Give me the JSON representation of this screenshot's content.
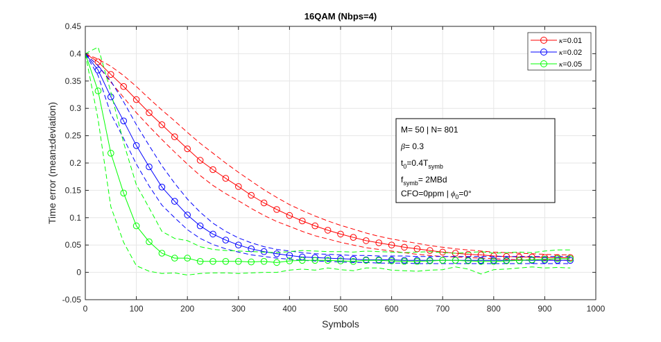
{
  "chart_data": {
    "type": "line",
    "title": "16QAM (Nbps=4)",
    "xlabel": "Symbols",
    "ylabel": "Time error (mean±deviation)",
    "xlim": [
      0,
      1000
    ],
    "ylim": [
      -0.05,
      0.45
    ],
    "xticks": [
      0,
      100,
      200,
      300,
      400,
      500,
      600,
      700,
      800,
      900,
      1000
    ],
    "yticks": [
      -0.05,
      0,
      0.05,
      0.1,
      0.15,
      0.2,
      0.25,
      0.3,
      0.35,
      0.4,
      0.45
    ],
    "ytick_labels": [
      "-0.05",
      "0",
      "0.05",
      "0.1",
      "0.15",
      "0.2",
      "0.25",
      "0.3",
      "0.35",
      "0.4",
      "0.45"
    ],
    "grid": true,
    "legend": {
      "location": "top-right",
      "entries": [
        {
          "prefix": "κ",
          "text": "=0.01"
        },
        {
          "prefix": "κ",
          "text": "=0.02"
        },
        {
          "prefix": "κ",
          "text": "=0.05"
        }
      ]
    },
    "x": [
      0,
      25,
      50,
      75,
      100,
      125,
      150,
      175,
      200,
      225,
      250,
      275,
      300,
      325,
      350,
      375,
      400,
      425,
      450,
      475,
      500,
      525,
      550,
      575,
      600,
      625,
      650,
      675,
      700,
      725,
      750,
      775,
      800,
      825,
      850,
      875,
      900,
      925,
      950
    ],
    "series": [
      {
        "name": "κ=0.01",
        "color": "#ff0000",
        "mean": [
          0.4,
          0.385,
          0.362,
          0.34,
          0.316,
          0.292,
          0.27,
          0.248,
          0.226,
          0.205,
          0.188,
          0.172,
          0.157,
          0.141,
          0.127,
          0.115,
          0.104,
          0.094,
          0.085,
          0.077,
          0.07,
          0.064,
          0.058,
          0.054,
          0.05,
          0.046,
          0.043,
          0.04,
          0.037,
          0.035,
          0.033,
          0.032,
          0.03,
          0.029,
          0.028,
          0.028,
          0.027,
          0.027,
          0.027
        ],
        "upper": [
          0.4,
          0.39,
          0.377,
          0.36,
          0.34,
          0.318,
          0.297,
          0.277,
          0.256,
          0.236,
          0.218,
          0.2,
          0.183,
          0.167,
          0.151,
          0.137,
          0.124,
          0.113,
          0.103,
          0.094,
          0.086,
          0.079,
          0.072,
          0.066,
          0.061,
          0.057,
          0.053,
          0.049,
          0.046,
          0.043,
          0.041,
          0.039,
          0.037,
          0.036,
          0.035,
          0.034,
          0.033,
          0.032,
          0.032
        ],
        "lower": [
          0.4,
          0.378,
          0.348,
          0.32,
          0.292,
          0.267,
          0.243,
          0.22,
          0.198,
          0.177,
          0.159,
          0.144,
          0.131,
          0.117,
          0.104,
          0.093,
          0.084,
          0.075,
          0.067,
          0.061,
          0.055,
          0.05,
          0.045,
          0.042,
          0.039,
          0.036,
          0.033,
          0.031,
          0.029,
          0.028,
          0.027,
          0.026,
          0.025,
          0.024,
          0.023,
          0.023,
          0.023,
          0.022,
          0.022
        ]
      },
      {
        "name": "κ=0.02",
        "color": "#0000ff",
        "mean": [
          0.4,
          0.37,
          0.321,
          0.277,
          0.232,
          0.193,
          0.156,
          0.13,
          0.105,
          0.085,
          0.07,
          0.059,
          0.05,
          0.043,
          0.038,
          0.034,
          0.031,
          0.028,
          0.027,
          0.026,
          0.025,
          0.024,
          0.023,
          0.023,
          0.023,
          0.022,
          0.022,
          0.022,
          0.022,
          0.022,
          0.022,
          0.022,
          0.022,
          0.022,
          0.022,
          0.022,
          0.022,
          0.022,
          0.022
        ],
        "upper": [
          0.4,
          0.378,
          0.35,
          0.312,
          0.27,
          0.232,
          0.195,
          0.163,
          0.134,
          0.11,
          0.09,
          0.075,
          0.063,
          0.054,
          0.047,
          0.042,
          0.039,
          0.036,
          0.034,
          0.033,
          0.032,
          0.031,
          0.031,
          0.03,
          0.03,
          0.03,
          0.029,
          0.029,
          0.029,
          0.029,
          0.029,
          0.029,
          0.029,
          0.029,
          0.029,
          0.029,
          0.029,
          0.029,
          0.029
        ],
        "lower": [
          0.4,
          0.36,
          0.29,
          0.245,
          0.198,
          0.158,
          0.123,
          0.1,
          0.078,
          0.062,
          0.051,
          0.043,
          0.037,
          0.032,
          0.029,
          0.026,
          0.024,
          0.022,
          0.021,
          0.02,
          0.019,
          0.018,
          0.018,
          0.017,
          0.017,
          0.017,
          0.016,
          0.016,
          0.016,
          0.016,
          0.016,
          0.016,
          0.016,
          0.016,
          0.016,
          0.016,
          0.016,
          0.016,
          0.016
        ]
      },
      {
        "name": "κ=0.05",
        "color": "#00ff00",
        "mean": [
          0.4,
          0.332,
          0.218,
          0.145,
          0.085,
          0.056,
          0.035,
          0.026,
          0.026,
          0.02,
          0.02,
          0.02,
          0.02,
          0.019,
          0.02,
          0.018,
          0.021,
          0.022,
          0.022,
          0.022,
          0.021,
          0.02,
          0.022,
          0.022,
          0.021,
          0.02,
          0.02,
          0.021,
          0.022,
          0.022,
          0.021,
          0.02,
          0.02,
          0.021,
          0.022,
          0.023,
          0.024,
          0.025,
          0.025
        ],
        "upper": [
          0.4,
          0.412,
          0.33,
          0.237,
          0.16,
          0.118,
          0.075,
          0.062,
          0.058,
          0.047,
          0.042,
          0.04,
          0.039,
          0.038,
          0.037,
          0.036,
          0.038,
          0.04,
          0.039,
          0.038,
          0.038,
          0.037,
          0.039,
          0.038,
          0.037,
          0.036,
          0.037,
          0.038,
          0.036,
          0.035,
          0.036,
          0.038,
          0.035,
          0.036,
          0.037,
          0.036,
          0.039,
          0.041,
          0.041
        ],
        "lower": [
          0.4,
          0.28,
          0.12,
          0.055,
          0.012,
          0.002,
          -0.002,
          -0.001,
          -0.005,
          -0.002,
          -0.001,
          -0.001,
          -0.002,
          -0.001,
          0.0,
          0.0,
          0.004,
          0.006,
          0.004,
          0.008,
          0.005,
          0.003,
          0.008,
          0.008,
          0.004,
          0.003,
          0.002,
          0.004,
          0.005,
          0.01,
          0.006,
          -0.003,
          0.005,
          0.006,
          0.008,
          0.01,
          0.008,
          0.009,
          0.008
        ]
      }
    ],
    "annotation": {
      "line1": "M= 50 | N= 801",
      "line2": {
        "sym": "β",
        "text": "= 0.3"
      },
      "line3": {
        "a": "t",
        "a_sub": "0",
        "b": "=0.4T",
        "b_sub": "symb"
      },
      "line4": {
        "a": "f",
        "a_sub": "symb",
        "b": "= 2MBd"
      },
      "line5": {
        "a": "CFO=0ppm | ",
        "sym": "ϕ",
        "sym_sub": "0",
        "b": "=0°"
      }
    }
  }
}
